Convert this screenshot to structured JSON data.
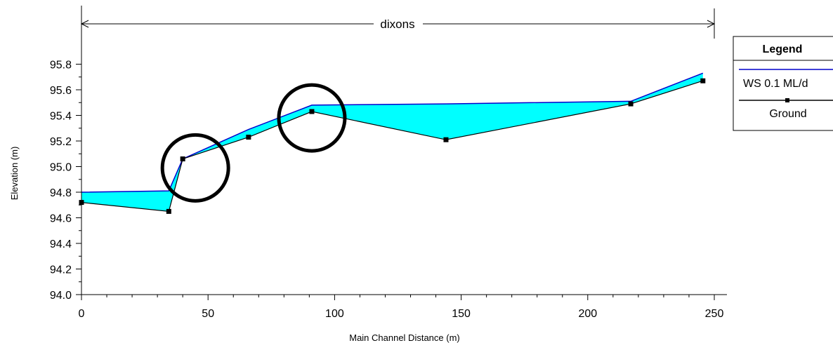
{
  "chart_data": {
    "type": "line",
    "reach_label": "dixons",
    "xlabel": "Main Channel Distance (m)",
    "ylabel": "Elevation (m)",
    "xlim": [
      0,
      250
    ],
    "ylim": [
      94.0,
      96.0
    ],
    "x_ticks": [
      "0",
      "50",
      "100",
      "150",
      "200",
      "250"
    ],
    "y_ticks": [
      "94.0",
      "94.2",
      "94.4",
      "94.6",
      "94.8",
      "95.0",
      "95.2",
      "95.4",
      "95.6",
      "95.8"
    ],
    "legend": {
      "title": "Legend",
      "entries": [
        "WS  0.1 ML/d",
        "Ground"
      ]
    },
    "series": [
      {
        "name": "WS  0.1 ML/d",
        "color": "#0000cc",
        "fill": "#00ffff",
        "x": [
          0,
          34.5,
          40,
          66,
          91,
          144,
          217,
          245.5
        ],
        "y": [
          94.8,
          94.81,
          95.06,
          95.29,
          95.48,
          95.49,
          95.51,
          95.73
        ]
      },
      {
        "name": "Ground",
        "color": "#000000",
        "marker": "square",
        "x": [
          0,
          34.5,
          40,
          66,
          91,
          144,
          217,
          245.5
        ],
        "y": [
          94.72,
          94.65,
          95.06,
          95.23,
          95.43,
          95.21,
          95.49,
          95.67
        ]
      }
    ],
    "annotations": [
      {
        "type": "circle",
        "x": 45,
        "y": 94.99
      },
      {
        "type": "circle",
        "x": 91,
        "y": 95.38
      }
    ]
  }
}
